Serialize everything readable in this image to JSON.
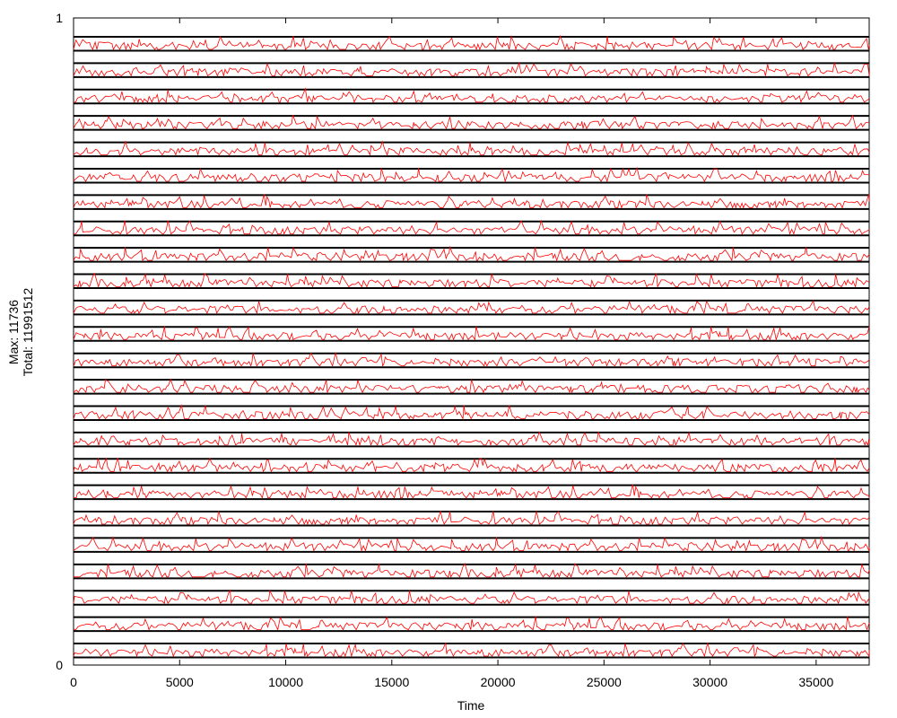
{
  "chart_data": {
    "type": "line",
    "title": "",
    "xlabel": "Time",
    "ylabel_lines": [
      "Max: 11736",
      "Total: 11991512"
    ],
    "xlim": [
      0,
      37500
    ],
    "ylim": [
      0,
      1
    ],
    "x_ticks": [
      0,
      5000,
      10000,
      15000,
      20000,
      25000,
      30000,
      35000
    ],
    "x_tick_labels": [
      "0",
      "5000",
      "10000",
      "15000",
      "20000",
      "25000",
      "30000",
      "35000"
    ],
    "y_ticks": [
      0,
      1
    ],
    "y_tick_labels": [
      "0",
      "1"
    ],
    "strip_count": 24,
    "series_color": "#ff0000",
    "baseline_color": "#000000",
    "grid": false
  }
}
